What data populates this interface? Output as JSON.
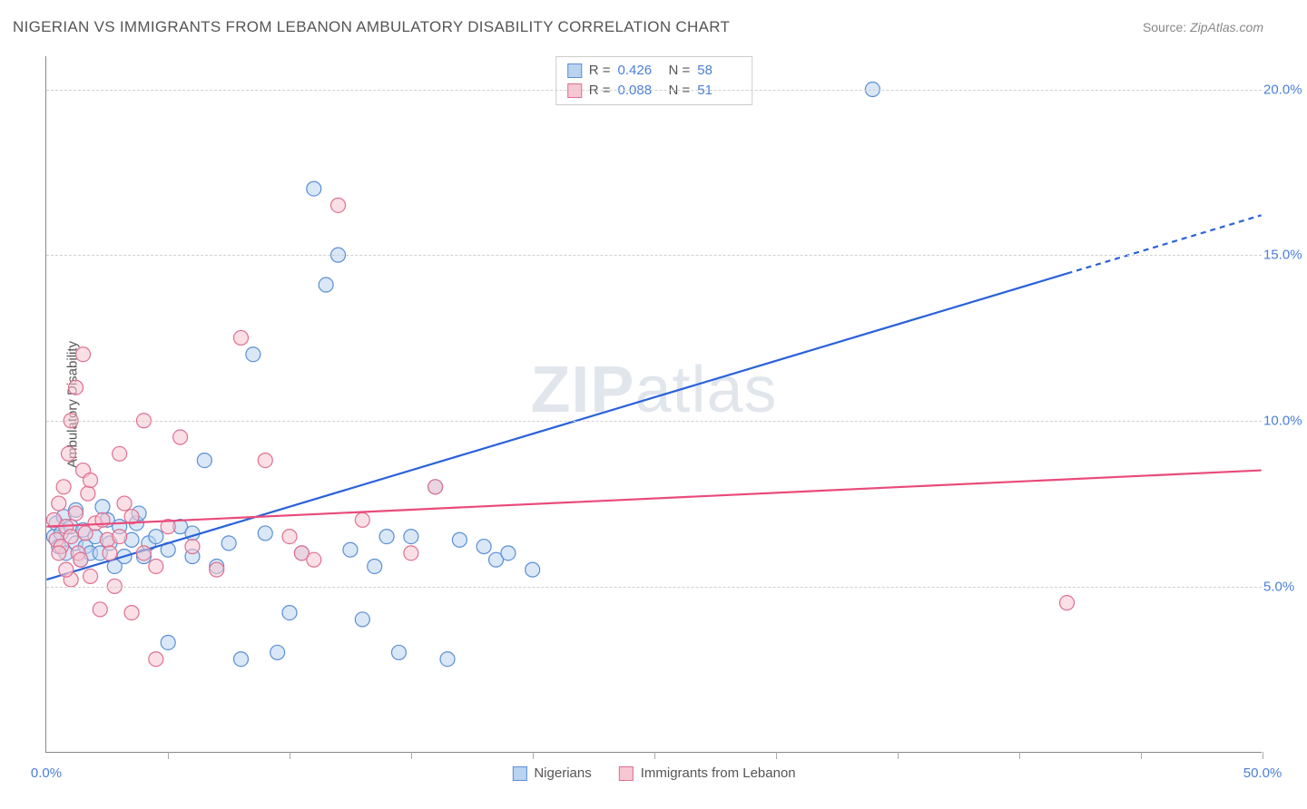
{
  "title": "NIGERIAN VS IMMIGRANTS FROM LEBANON AMBULATORY DISABILITY CORRELATION CHART",
  "source_label": "Source:",
  "source_value": "ZipAtlas.com",
  "y_axis_label": "Ambulatory Disability",
  "watermark": "ZIPatlas",
  "chart": {
    "type": "scatter",
    "xlim": [
      0,
      50
    ],
    "ylim": [
      0,
      21
    ],
    "xtick_positions": [
      0,
      5,
      10,
      15,
      20,
      25,
      30,
      35,
      40,
      45,
      50
    ],
    "xtick_labels": {
      "0": "0.0%",
      "50": "50.0%"
    },
    "ytick_positions": [
      5,
      10,
      15,
      20
    ],
    "ytick_labels": {
      "5": "5.0%",
      "10": "10.0%",
      "15": "15.0%",
      "20": "20.0%"
    },
    "grid_color": "#d0d0d0",
    "background_color": "#ffffff",
    "axis_color": "#888888",
    "tick_label_color": "#4a7fd8",
    "marker_radius": 8,
    "marker_stroke_width": 1.2,
    "series": [
      {
        "name": "Nigerians",
        "fill": "#b9d3f0",
        "fill_opacity": 0.55,
        "stroke": "#5a8fd6",
        "regression": {
          "R": "0.426",
          "N": "58",
          "line_color": "#2962d9",
          "y_at_x0": 5.2,
          "y_at_x50": 16.2,
          "dash_from_x": 42
        },
        "points": [
          [
            0.3,
            6.5
          ],
          [
            0.4,
            6.9
          ],
          [
            0.5,
            6.2
          ],
          [
            0.6,
            6.6
          ],
          [
            0.7,
            7.1
          ],
          [
            0.8,
            6.0
          ],
          [
            1.0,
            6.8
          ],
          [
            1.2,
            6.3
          ],
          [
            1.2,
            7.3
          ],
          [
            1.4,
            5.8
          ],
          [
            1.5,
            6.7
          ],
          [
            1.6,
            6.2
          ],
          [
            1.8,
            6.0
          ],
          [
            2.0,
            6.5
          ],
          [
            2.2,
            6.0
          ],
          [
            2.5,
            7.0
          ],
          [
            2.6,
            6.3
          ],
          [
            2.8,
            5.6
          ],
          [
            3.0,
            6.8
          ],
          [
            3.2,
            5.9
          ],
          [
            3.5,
            6.4
          ],
          [
            3.7,
            6.9
          ],
          [
            4.0,
            5.9
          ],
          [
            4.2,
            6.3
          ],
          [
            4.5,
            6.5
          ],
          [
            5.0,
            6.1
          ],
          [
            5.0,
            3.3
          ],
          [
            5.5,
            6.8
          ],
          [
            6.0,
            5.9
          ],
          [
            6.5,
            8.8
          ],
          [
            7.0,
            5.6
          ],
          [
            7.5,
            6.3
          ],
          [
            8.0,
            2.8
          ],
          [
            8.5,
            12.0
          ],
          [
            9.0,
            6.6
          ],
          [
            9.5,
            3.0
          ],
          [
            10.0,
            4.2
          ],
          [
            10.5,
            6.0
          ],
          [
            11.0,
            17.0
          ],
          [
            11.5,
            14.1
          ],
          [
            12.0,
            15.0
          ],
          [
            12.5,
            6.1
          ],
          [
            13.0,
            4.0
          ],
          [
            13.5,
            5.6
          ],
          [
            14.0,
            6.5
          ],
          [
            14.5,
            3.0
          ],
          [
            15.0,
            6.5
          ],
          [
            16.0,
            8.0
          ],
          [
            16.5,
            2.8
          ],
          [
            17.0,
            6.4
          ],
          [
            18.0,
            6.2
          ],
          [
            18.5,
            5.8
          ],
          [
            19.0,
            6.0
          ],
          [
            20.0,
            5.5
          ],
          [
            34.0,
            20.0
          ],
          [
            6.0,
            6.6
          ],
          [
            3.8,
            7.2
          ],
          [
            2.3,
            7.4
          ]
        ]
      },
      {
        "name": "Immigrants from Lebanon",
        "fill": "#f6c7d2",
        "fill_opacity": 0.55,
        "stroke": "#e06f8f",
        "regression": {
          "R": "0.088",
          "N": "51",
          "line_color": "#e94b7a",
          "y_at_x0": 6.8,
          "y_at_x50": 8.5,
          "dash_from_x": 50
        },
        "points": [
          [
            0.3,
            7.0
          ],
          [
            0.4,
            6.4
          ],
          [
            0.5,
            7.5
          ],
          [
            0.6,
            6.2
          ],
          [
            0.7,
            8.0
          ],
          [
            0.8,
            6.8
          ],
          [
            0.9,
            9.0
          ],
          [
            1.0,
            6.5
          ],
          [
            1.0,
            10.0
          ],
          [
            1.2,
            7.2
          ],
          [
            1.2,
            11.0
          ],
          [
            1.3,
            6.0
          ],
          [
            1.4,
            5.8
          ],
          [
            1.5,
            8.5
          ],
          [
            1.5,
            12.0
          ],
          [
            1.6,
            6.6
          ],
          [
            1.7,
            7.8
          ],
          [
            1.8,
            5.3
          ],
          [
            2.0,
            6.9
          ],
          [
            2.2,
            4.3
          ],
          [
            2.3,
            7.0
          ],
          [
            2.5,
            6.4
          ],
          [
            2.8,
            5.0
          ],
          [
            3.0,
            9.0
          ],
          [
            3.0,
            6.5
          ],
          [
            3.5,
            7.1
          ],
          [
            3.5,
            4.2
          ],
          [
            4.0,
            10.0
          ],
          [
            4.0,
            6.0
          ],
          [
            4.5,
            5.6
          ],
          [
            4.5,
            2.8
          ],
          [
            5.0,
            6.8
          ],
          [
            5.5,
            9.5
          ],
          [
            6.0,
            6.2
          ],
          [
            7.0,
            5.5
          ],
          [
            8.0,
            12.5
          ],
          [
            9.0,
            8.8
          ],
          [
            10.0,
            6.5
          ],
          [
            10.5,
            6.0
          ],
          [
            11.0,
            5.8
          ],
          [
            12.0,
            16.5
          ],
          [
            13.0,
            7.0
          ],
          [
            15.0,
            6.0
          ],
          [
            16.0,
            8.0
          ],
          [
            1.0,
            5.2
          ],
          [
            1.8,
            8.2
          ],
          [
            2.6,
            6.0
          ],
          [
            3.2,
            7.5
          ],
          [
            0.5,
            6.0
          ],
          [
            0.8,
            5.5
          ],
          [
            42.0,
            4.5
          ]
        ]
      }
    ]
  },
  "stats_box": {
    "rows": [
      {
        "swatch_fill": "#b9d3f0",
        "swatch_stroke": "#5a8fd6",
        "r_label": "R =",
        "r_value": "0.426",
        "n_label": "N =",
        "n_value": "58",
        "value_color": "#4a7fd8"
      },
      {
        "swatch_fill": "#f6c7d2",
        "swatch_stroke": "#e06f8f",
        "r_label": "R =",
        "r_value": "0.088",
        "n_label": "N =",
        "n_value": "51",
        "value_color": "#4a7fd8"
      }
    ]
  },
  "legend": [
    {
      "swatch_fill": "#b9d3f0",
      "swatch_stroke": "#5a8fd6",
      "label": "Nigerians"
    },
    {
      "swatch_fill": "#f6c7d2",
      "swatch_stroke": "#e06f8f",
      "label": "Immigrants from Lebanon"
    }
  ]
}
